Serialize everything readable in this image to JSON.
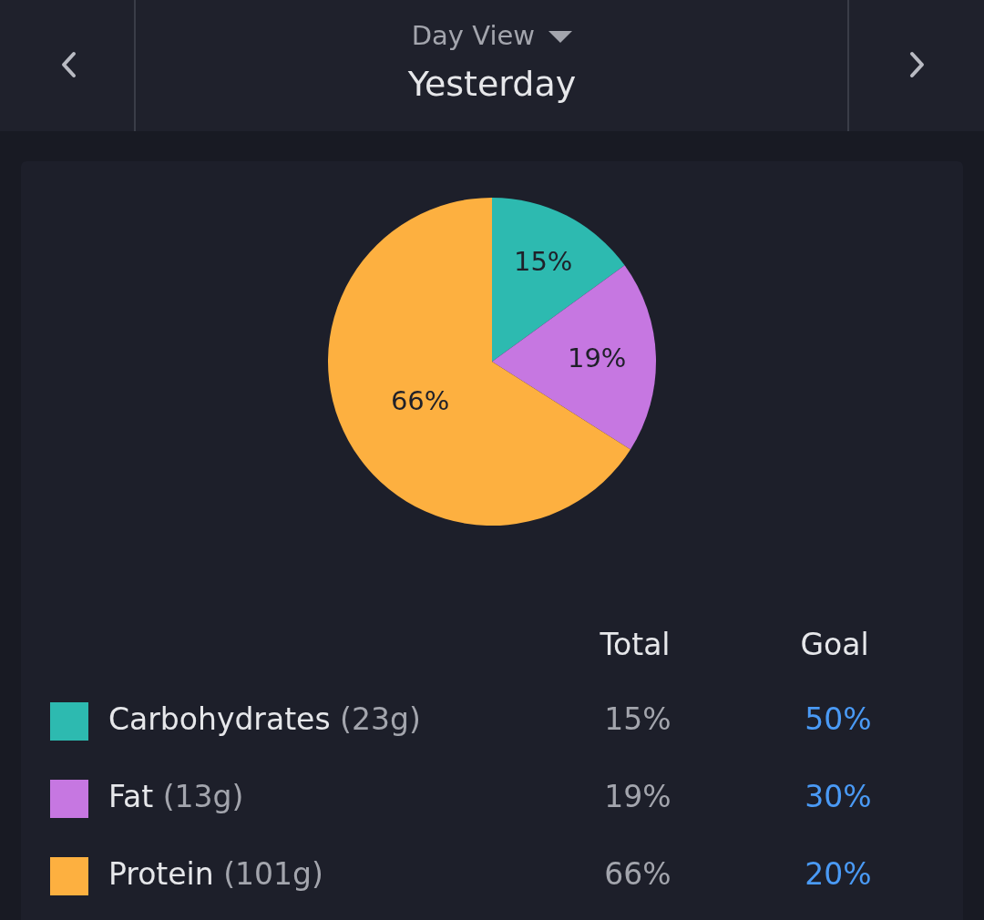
{
  "chart_data": {
    "type": "pie",
    "title": "Yesterday",
    "subtitle": "Day View",
    "categories": [
      "Carbohydrates",
      "Fat",
      "Protein"
    ],
    "values": [
      15,
      19,
      66
    ],
    "colors": [
      "#2dbab0",
      "#c677e1",
      "#fdb040"
    ],
    "value_labels": [
      "15%",
      "19%",
      "66%"
    ],
    "legend": "bottom",
    "annotations": [
      "Total",
      "Goal",
      "(23g)",
      "(13g)",
      "(101g)",
      "50%",
      "30%",
      "20%"
    ]
  }
}
